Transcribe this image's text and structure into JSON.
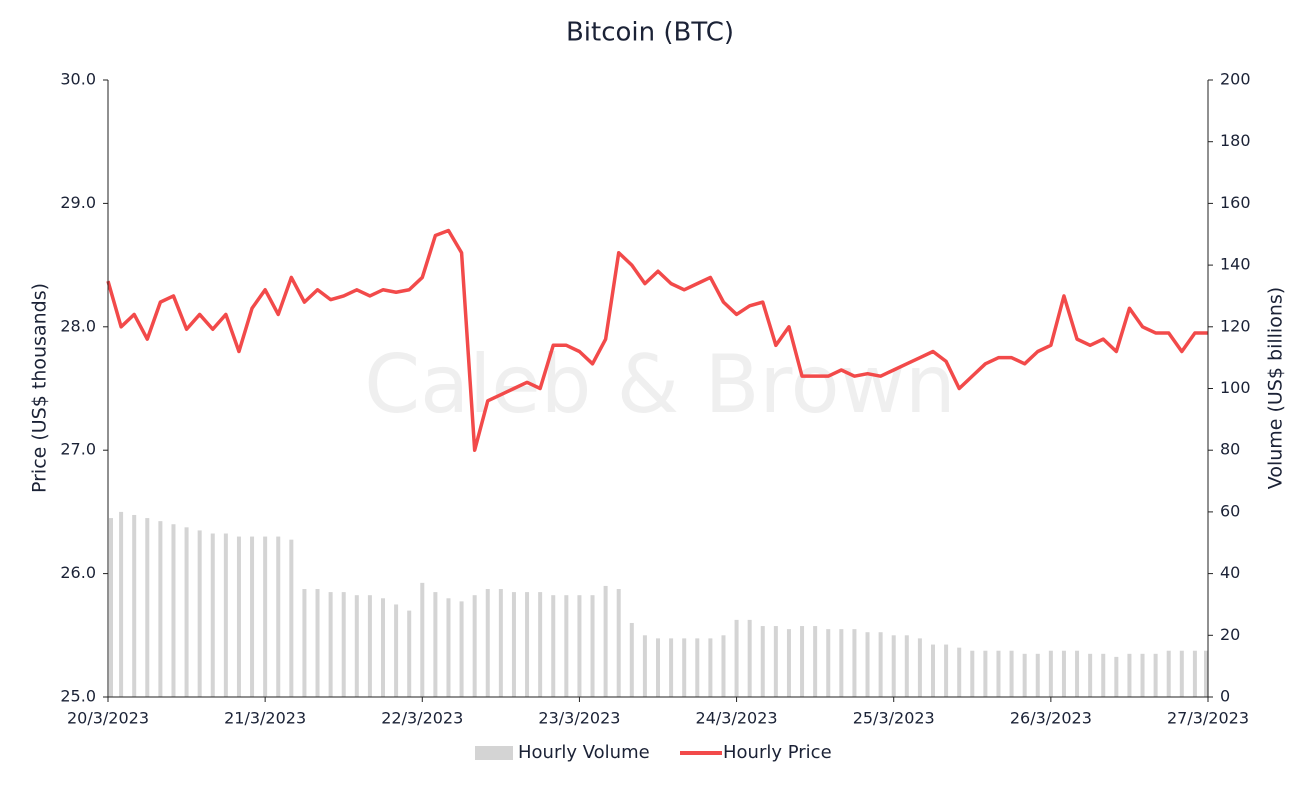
{
  "chart_data": {
    "type": "line",
    "title": "Bitcoin (BTC)",
    "watermark": "Caleb & Brown",
    "y_label": "Price (US$ thousands)",
    "y2_label": "Volume (US$ billions)",
    "categories": [
      "20/3/2023",
      null,
      null,
      null,
      null,
      null,
      null,
      null,
      null,
      null,
      null,
      null,
      "21/3/2023",
      null,
      null,
      null,
      null,
      null,
      null,
      null,
      null,
      null,
      null,
      null,
      "22/3/2023",
      null,
      null,
      null,
      null,
      null,
      null,
      null,
      null,
      null,
      null,
      null,
      "23/3/2023",
      null,
      null,
      null,
      null,
      null,
      null,
      null,
      null,
      null,
      null,
      null,
      "24/3/2023",
      null,
      null,
      null,
      null,
      null,
      null,
      null,
      null,
      null,
      null,
      null,
      "25/3/2023",
      null,
      null,
      null,
      null,
      null,
      null,
      null,
      null,
      null,
      null,
      null,
      "26/3/2023",
      null,
      null,
      null,
      null,
      null,
      null,
      null,
      null,
      null,
      null,
      null,
      "27/3/2023"
    ],
    "series": [
      {
        "name": "Hourly Volume",
        "type": "bar",
        "axis": "y2",
        "color": "#d4d4d4",
        "values": [
          58,
          60,
          59,
          58,
          57,
          56,
          55,
          54,
          53,
          53,
          52,
          52,
          52,
          52,
          51,
          35,
          35,
          34,
          34,
          33,
          33,
          32,
          30,
          28,
          37,
          34,
          32,
          31,
          33,
          35,
          35,
          34,
          34,
          34,
          33,
          33,
          33,
          33,
          36,
          35,
          24,
          20,
          19,
          19,
          19,
          19,
          19,
          20,
          25,
          25,
          23,
          23,
          22,
          23,
          23,
          22,
          22,
          22,
          21,
          21,
          20,
          20,
          19,
          17,
          17,
          16,
          15,
          15,
          15,
          15,
          14,
          14,
          15,
          15,
          15,
          14,
          14,
          13,
          14,
          14,
          14,
          15,
          15,
          15,
          15
        ]
      },
      {
        "name": "Hourly Price",
        "type": "line",
        "color": "#f24a4a",
        "values": [
          28.37,
          28.0,
          28.1,
          27.9,
          28.2,
          28.25,
          27.98,
          28.1,
          27.98,
          28.1,
          27.8,
          28.15,
          28.3,
          28.1,
          28.4,
          28.2,
          28.3,
          28.22,
          28.25,
          28.3,
          28.25,
          28.3,
          28.28,
          28.3,
          28.4,
          28.74,
          28.78,
          28.6,
          27.0,
          27.4,
          27.45,
          27.5,
          27.55,
          27.5,
          27.85,
          27.85,
          27.8,
          27.7,
          27.9,
          28.6,
          28.5,
          28.35,
          28.45,
          28.35,
          28.3,
          28.35,
          28.4,
          28.2,
          28.1,
          28.17,
          28.2,
          27.85,
          28.0,
          27.6,
          27.6,
          27.6,
          27.65,
          27.6,
          27.62,
          27.6,
          27.65,
          27.7,
          27.75,
          27.8,
          27.72,
          27.5,
          27.6,
          27.7,
          27.75,
          27.75,
          27.7,
          27.8,
          27.85,
          28.25,
          27.9,
          27.85,
          27.9,
          27.8,
          28.15,
          28.0,
          27.95,
          27.95,
          27.8,
          27.95,
          27.95
        ]
      }
    ],
    "ylim": [
      25,
      30
    ],
    "yticks": [
      {
        "value": 25,
        "label": "25.0"
      },
      {
        "value": 26,
        "label": "26.0"
      },
      {
        "value": 27,
        "label": "27.0"
      },
      {
        "value": 28,
        "label": "28.0"
      },
      {
        "value": 29,
        "label": "29.0"
      },
      {
        "value": 30,
        "label": "30.0"
      }
    ],
    "y2lim": [
      0,
      200
    ],
    "y2ticks": [
      0,
      20,
      40,
      60,
      80,
      100,
      120,
      140,
      160,
      180,
      200
    ],
    "grid": false
  }
}
